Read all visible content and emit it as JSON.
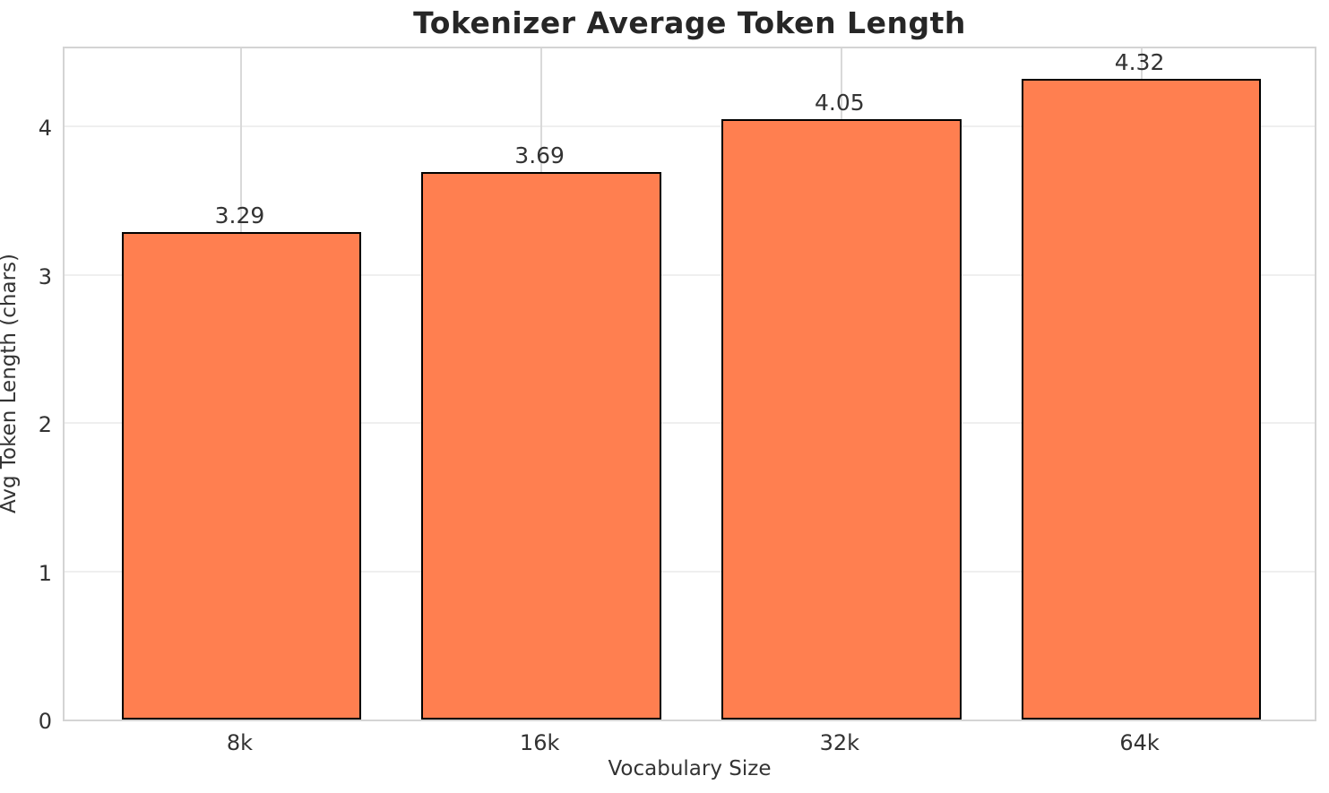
{
  "chart_data": {
    "type": "bar",
    "title": "Tokenizer Average Token Length",
    "xlabel": "Vocabulary Size",
    "ylabel": "Avg Token Length (chars)",
    "categories": [
      "8k",
      "16k",
      "32k",
      "64k"
    ],
    "values": [
      3.29,
      3.69,
      4.05,
      4.32
    ],
    "value_labels": [
      "3.29",
      "3.69",
      "4.05",
      "4.32"
    ],
    "yticks": [
      0,
      1,
      2,
      3,
      4
    ],
    "ytick_labels": [
      "0",
      "1",
      "2",
      "3",
      "4"
    ],
    "ylim": [
      0,
      4.55
    ],
    "grid": "both",
    "legend": "none",
    "bar_color": "#FF7F50",
    "bar_edge_color": "#000000"
  }
}
